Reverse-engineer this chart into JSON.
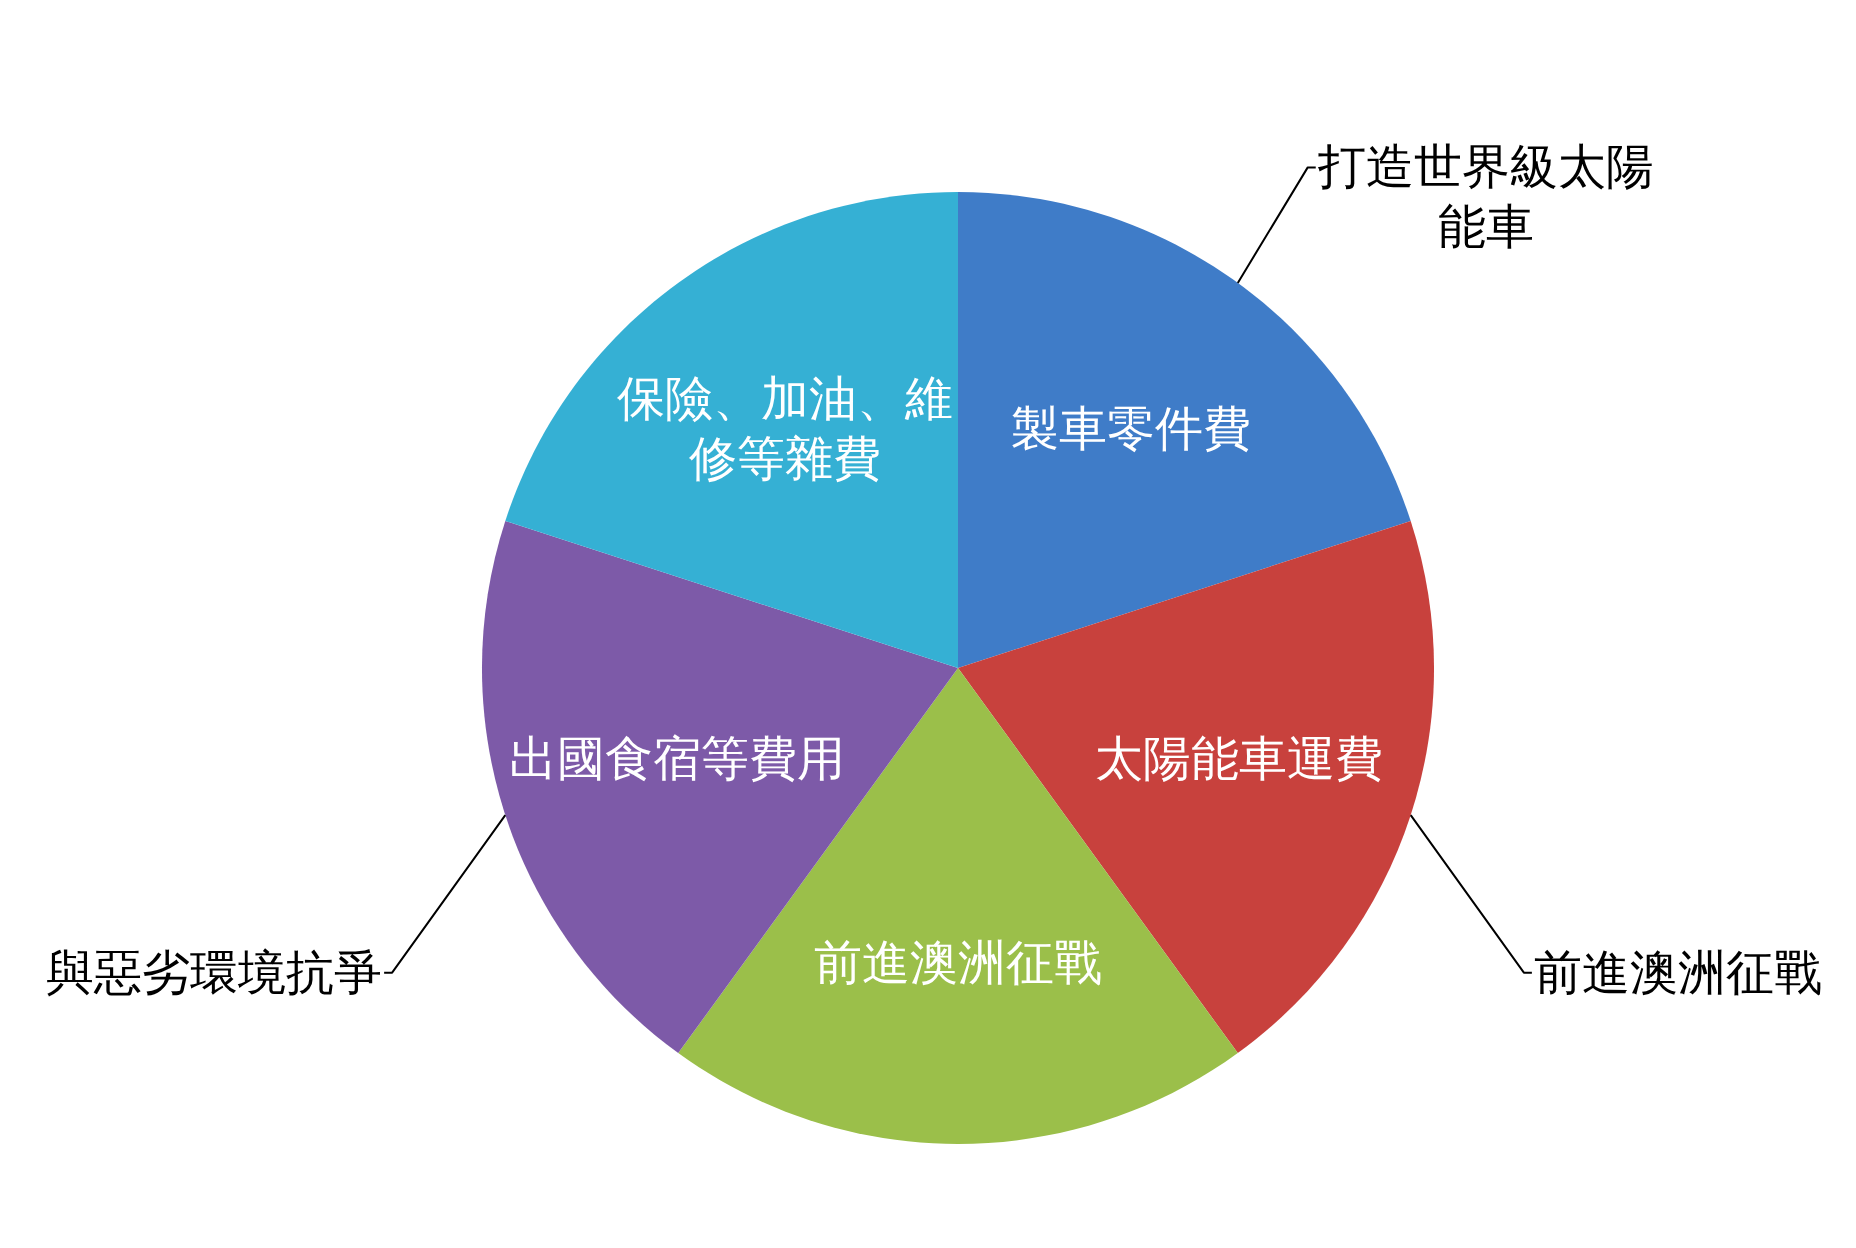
{
  "chart_data": {
    "type": "pie",
    "categories": [
      "製車零件費",
      "太陽能車運費",
      "前進澳洲征戰",
      "出國食宿等費用",
      "保險、加油、維修等雜費"
    ],
    "values": [
      20,
      20,
      20,
      20,
      20
    ],
    "colors": [
      "#3f7cc8",
      "#c8413d",
      "#9bbf4a",
      "#7d5aa8",
      "#35b0d4"
    ],
    "annotations": [
      {
        "text": "打造世界級太陽能車",
        "x": "製車零件費"
      },
      {
        "text": "前進澳洲征戰",
        "x": "太陽能車運費"
      },
      {
        "text": "與惡劣環境抗爭",
        "x": "出國食宿等費用"
      }
    ]
  }
}
